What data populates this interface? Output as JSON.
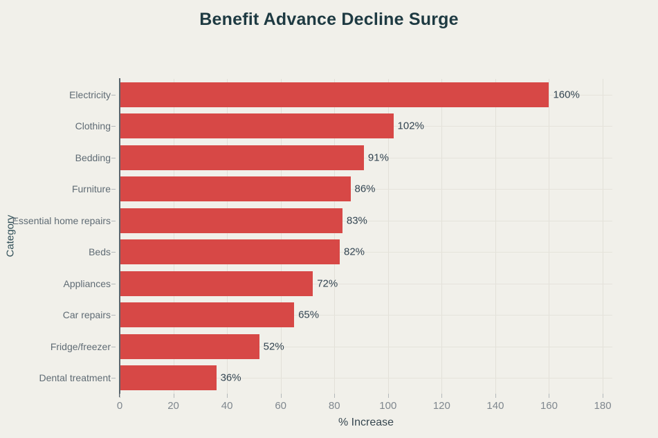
{
  "chart_data": {
    "type": "bar",
    "orientation": "horizontal",
    "title": "Benefit Advance Decline Surge",
    "categories": [
      "Electricity",
      "Clothing",
      "Bedding",
      "Furniture",
      "Essential home repairs",
      "Beds",
      "Appliances",
      "Car repairs",
      "Fridge/freezer",
      "Dental treatment"
    ],
    "values": [
      160,
      102,
      91,
      86,
      83,
      82,
      72,
      65,
      52,
      36
    ],
    "value_labels": [
      "160%",
      "102%",
      "91%",
      "86%",
      "83%",
      "82%",
      "72%",
      "65%",
      "52%",
      "36%"
    ],
    "xlabel": "% Increase",
    "ylabel": "Category",
    "xlim": [
      0,
      183.6
    ],
    "xticks": [
      0,
      20,
      40,
      60,
      80,
      100,
      120,
      140,
      160,
      180
    ],
    "grid": true,
    "legend": false,
    "colors": {
      "bar": "#d74846",
      "background": "#f1f0ea",
      "title": "#1e3a42",
      "category_label": "#5f6b74",
      "value_label": "#324451",
      "tick_label": "#7f878e",
      "axis_line": "#59646c",
      "gridline": "#e2e0d8"
    }
  }
}
